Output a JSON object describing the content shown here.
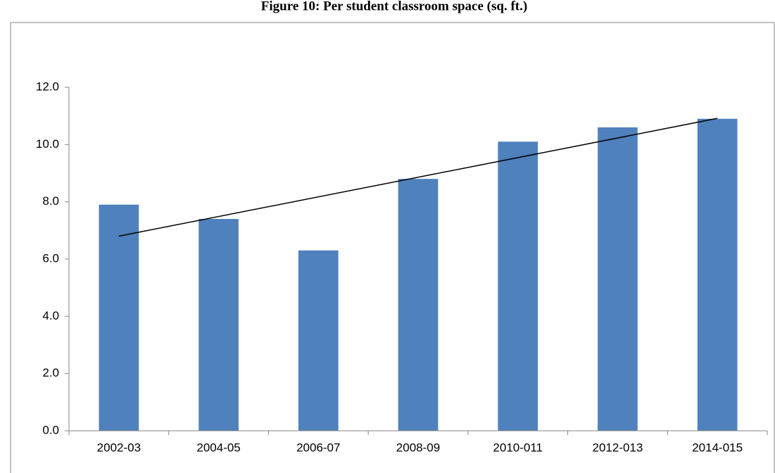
{
  "chart_data": {
    "type": "bar",
    "title": "Figure 10: Per student classroom space (sq. ft.)",
    "categories": [
      "2002-03",
      "2004-05",
      "2006-07",
      "2008-09",
      "2010-011",
      "2012-013",
      "2014-015"
    ],
    "values": [
      7.9,
      7.4,
      6.3,
      8.8,
      10.1,
      10.6,
      10.9
    ],
    "color": "#4f81bd",
    "ylim": [
      0,
      12
    ],
    "yticks": [
      {
        "value": 0,
        "label": "0.0"
      },
      {
        "value": 2,
        "label": "2.0"
      },
      {
        "value": 4,
        "label": "4.0"
      },
      {
        "value": 6,
        "label": "6.0"
      },
      {
        "value": 8,
        "label": "8.0"
      },
      {
        "value": 10,
        "label": "10.0"
      },
      {
        "value": 12,
        "label": "12.0"
      }
    ],
    "grid": false,
    "trendline": "linear"
  }
}
